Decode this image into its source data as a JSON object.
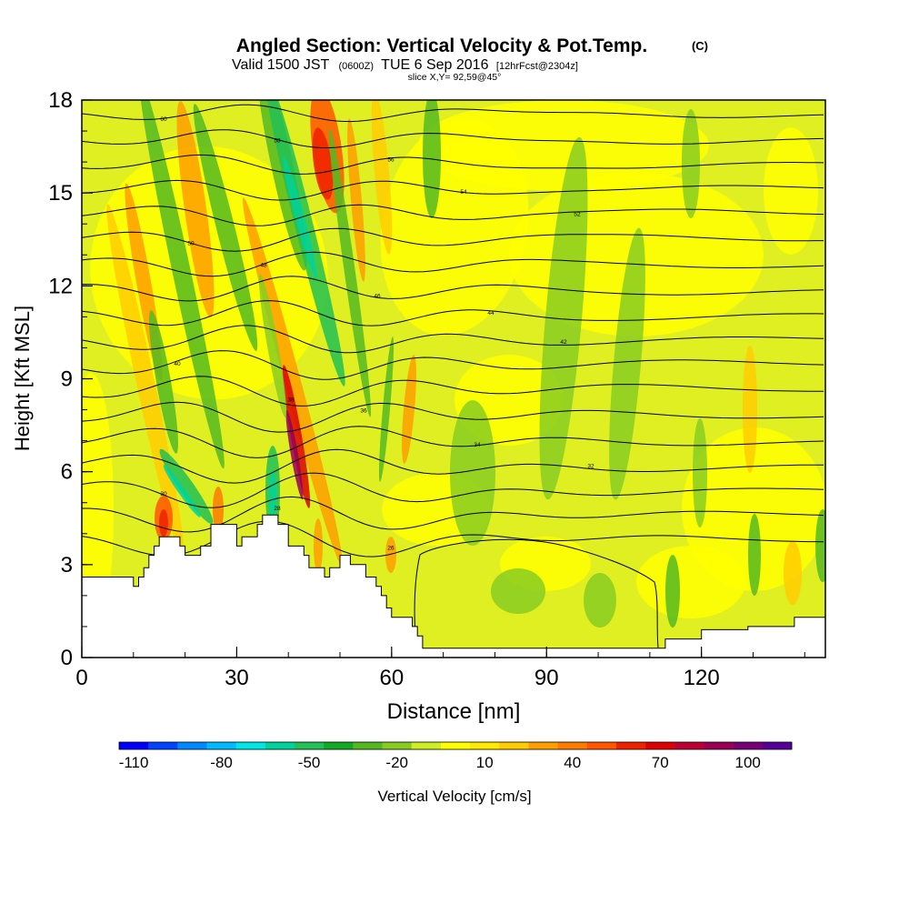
{
  "header": {
    "title_main": "Angled Section: Vertical Velocity & Pot.Temp.",
    "title_unit": "(C)",
    "subtitle_a": "Valid 1500 JST",
    "subtitle_b": "(0600Z)",
    "subtitle_c": "TUE 6 Sep 2016",
    "subtitle_d": "[12hrFcst@2304z]",
    "slice": "slice X,Y= 92,59@45°"
  },
  "chart_data": {
    "type": "heatmap",
    "xlabel": "Distance [nm]",
    "ylabel": "Height [Kft MSL]",
    "xlim": [
      0,
      144
    ],
    "ylim": [
      0,
      18
    ],
    "x_ticks": [
      0,
      30,
      60,
      90,
      120
    ],
    "y_ticks": [
      0,
      3,
      6,
      9,
      12,
      15,
      18
    ],
    "colorbar": {
      "label": "Vertical Velocity [cm/s]",
      "ticks": [
        -110,
        -80,
        -50,
        -20,
        10,
        40,
        70,
        100
      ],
      "min": -115,
      "max": 115,
      "colors": [
        "#0000ff",
        "#0044ff",
        "#0088ff",
        "#00bbff",
        "#00e5e5",
        "#00d29b",
        "#22c055",
        "#11aa22",
        "#55b822",
        "#88cc22",
        "#ccee22",
        "#ffff00",
        "#ffea00",
        "#ffcc00",
        "#ff9e00",
        "#ff7a00",
        "#ff5500",
        "#ee2200",
        "#dd0000",
        "#bb0033",
        "#990055",
        "#770077",
        "#550099"
      ]
    },
    "terrain_kft": [
      [
        0,
        2.6
      ],
      [
        10,
        2.6
      ],
      [
        10,
        2.3
      ],
      [
        11,
        2.3
      ],
      [
        11,
        2.6
      ],
      [
        12,
        2.6
      ],
      [
        12,
        2.9
      ],
      [
        13,
        2.9
      ],
      [
        13,
        3.3
      ],
      [
        14,
        3.3
      ],
      [
        14,
        3.6
      ],
      [
        15,
        3.6
      ],
      [
        15,
        3.9
      ],
      [
        19,
        3.9
      ],
      [
        19,
        3.6
      ],
      [
        20,
        3.6
      ],
      [
        20,
        3.3
      ],
      [
        23,
        3.3
      ],
      [
        23,
        3.6
      ],
      [
        25,
        3.6
      ],
      [
        25,
        4.3
      ],
      [
        30,
        4.3
      ],
      [
        30,
        3.6
      ],
      [
        31,
        3.6
      ],
      [
        31,
        3.9
      ],
      [
        34,
        3.9
      ],
      [
        34,
        4.3
      ],
      [
        35,
        4.3
      ],
      [
        35,
        4.6
      ],
      [
        38,
        4.6
      ],
      [
        38,
        4.3
      ],
      [
        40,
        4.3
      ],
      [
        40,
        3.6
      ],
      [
        43,
        3.6
      ],
      [
        43,
        3.3
      ],
      [
        44,
        3.3
      ],
      [
        44,
        2.9
      ],
      [
        47,
        2.9
      ],
      [
        47,
        2.6
      ],
      [
        48,
        2.6
      ],
      [
        48,
        2.9
      ],
      [
        50,
        2.9
      ],
      [
        50,
        3.3
      ],
      [
        52,
        3.3
      ],
      [
        52,
        3.0
      ],
      [
        55,
        3.0
      ],
      [
        55,
        2.6
      ],
      [
        57,
        2.6
      ],
      [
        57,
        2.3
      ],
      [
        58,
        2.3
      ],
      [
        58,
        2.0
      ],
      [
        59,
        2.0
      ],
      [
        59,
        1.6
      ],
      [
        60,
        1.6
      ],
      [
        60,
        1.3
      ],
      [
        64,
        1.3
      ],
      [
        64,
        1.0
      ],
      [
        65,
        1.0
      ],
      [
        65,
        0.7
      ],
      [
        66,
        0.7
      ],
      [
        66,
        0.3
      ],
      [
        113,
        0.3
      ],
      [
        113,
        0.6
      ],
      [
        120,
        0.6
      ],
      [
        120,
        0.9
      ],
      [
        129,
        0.9
      ],
      [
        129,
        1.0
      ],
      [
        138,
        1.0
      ],
      [
        138,
        1.3
      ],
      [
        144,
        1.3
      ]
    ],
    "contour_labels": [
      "60",
      "58",
      "56",
      "54",
      "52",
      "50",
      "48",
      "46",
      "44",
      "42",
      "40",
      "38",
      "36",
      "34",
      "32",
      "30",
      "28",
      "26"
    ]
  }
}
